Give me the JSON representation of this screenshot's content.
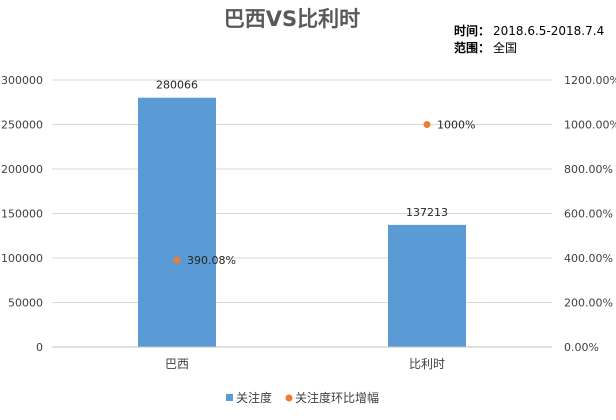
{
  "header": {
    "title": "巴西VS比利时",
    "time_label": "时间：",
    "time_value": "2018.6.5-2018.7.4",
    "range_label": "范围：",
    "range_value": "全国"
  },
  "colors": {
    "bar": "#5b9bd5",
    "point": "#ed7d31",
    "grid": "#d9d9d9",
    "axis": "#bfbfbf"
  },
  "chart_data": {
    "type": "bar",
    "title": "巴西VS比利时",
    "categories": [
      "巴西",
      "比利时"
    ],
    "series": [
      {
        "name": "关注度",
        "type": "bar",
        "axis": "left",
        "values": [
          280066,
          137213
        ],
        "labels": [
          "280066",
          "137213"
        ]
      },
      {
        "name": "关注度环比增幅",
        "type": "scatter",
        "axis": "right",
        "values": [
          390.08,
          1000
        ],
        "labels": [
          "390.08%",
          "1000%"
        ]
      }
    ],
    "y_left": {
      "ylim": [
        0,
        300000
      ],
      "ticks": [
        "0",
        "50000",
        "100000",
        "150000",
        "200000",
        "250000",
        "300000"
      ]
    },
    "y_right": {
      "ylim": [
        0,
        1200
      ],
      "ticks": [
        "0.00%",
        "200.00%",
        "400.00%",
        "600.00%",
        "800.00%",
        "1000.00%",
        "1200.00%"
      ]
    },
    "grid": true,
    "legend_position": "bottom"
  }
}
